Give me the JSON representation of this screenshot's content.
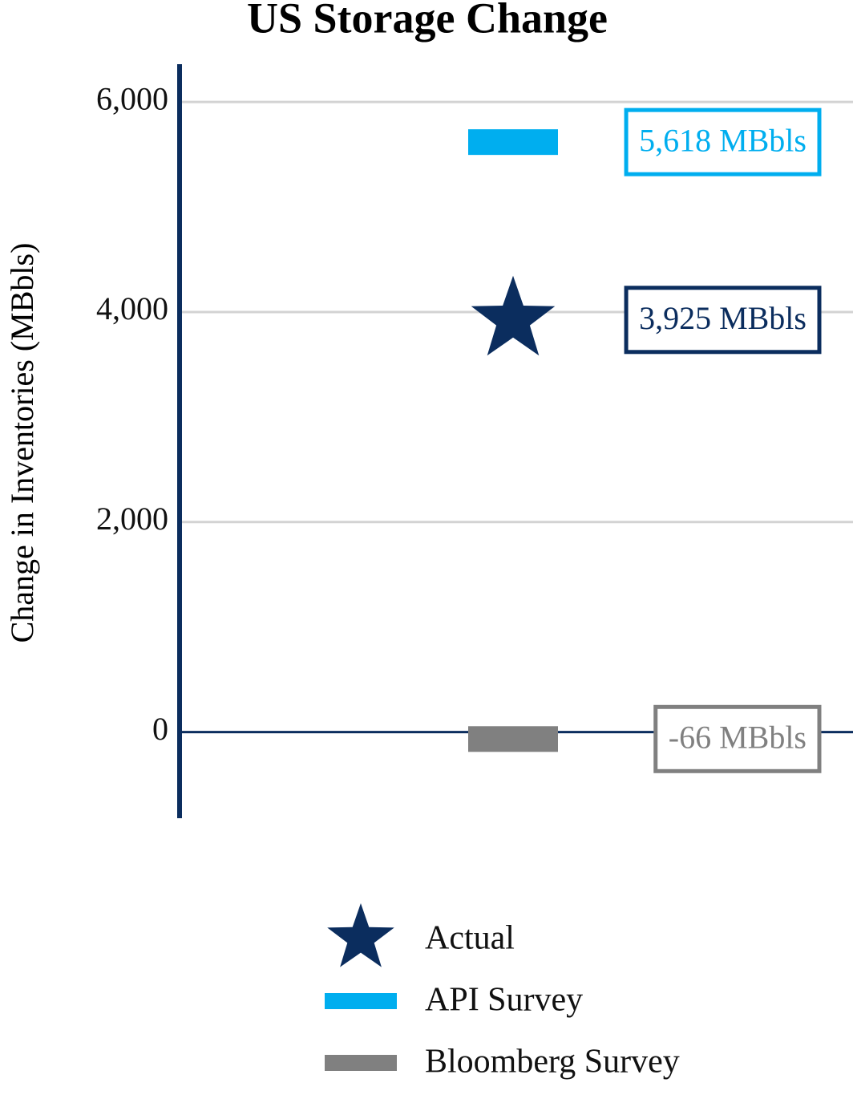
{
  "chart_data": {
    "type": "point",
    "title": "US Storage Change",
    "y_label": "Change in Inventories (MBbls)",
    "categories": [
      null
    ],
    "ylim": [
      -820,
      6360
    ],
    "yticks": [
      0,
      {
        "value": 2000,
        "label": "2,000"
      },
      {
        "value": 4000,
        "label": "4,000"
      },
      {
        "value": 6000,
        "label": "6,000"
      }
    ],
    "grid": true,
    "series": [
      {
        "name": "Actual",
        "color": "#0b2d5e",
        "marker": "star",
        "values": [
          3925
        ],
        "value_labels": [
          "3,925 MBbls"
        ]
      },
      {
        "name": "API Survey",
        "color": "#00aeef",
        "marker": "bar",
        "values": [
          5618
        ],
        "value_labels": [
          "5,618 MBbls"
        ]
      },
      {
        "name": "Bloomberg Survey",
        "color": "#808080",
        "marker": "bar",
        "values": [
          -66
        ],
        "value_labels": [
          "-66 MBbls"
        ]
      }
    ]
  }
}
